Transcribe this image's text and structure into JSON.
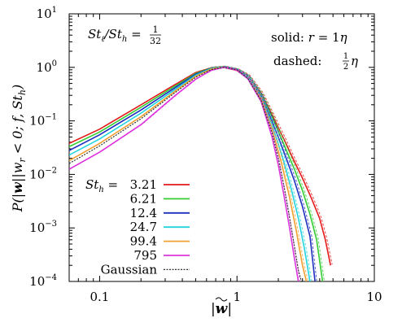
{
  "chart_data": {
    "type": "line",
    "title": "",
    "xlabel": "|w̃|",
    "ylabel": "P(|w̃| | w_r < 0; f, St_h)",
    "xscale": "log",
    "yscale": "log",
    "xlim": [
      0.06,
      10
    ],
    "ylim": [
      0.0001,
      10
    ],
    "xticks": [
      {
        "value": 0.1,
        "label": "0.1"
      },
      {
        "value": 1,
        "label": "1"
      },
      {
        "value": 10,
        "label": "10"
      }
    ],
    "yticks": [
      {
        "value": 0.0001,
        "base": "10",
        "exp": "−4"
      },
      {
        "value": 0.001,
        "base": "10",
        "exp": "−3"
      },
      {
        "value": 0.01,
        "base": "10",
        "exp": "−2"
      },
      {
        "value": 0.1,
        "base": "10",
        "exp": "−1"
      },
      {
        "value": 1,
        "base": "10",
        "exp": "0"
      },
      {
        "value": 10,
        "base": "10",
        "exp": "1"
      }
    ],
    "annotations": {
      "ratio_label": "St_ℓ/St_h = 1/32",
      "solid_label": "solid: r = 1η",
      "dashed_label": "dashed: ½η"
    },
    "legend": {
      "placement": "bottom-left",
      "header": "St_h = ",
      "entries": [
        "3.21",
        "6.21",
        "12.4",
        "24.7",
        "99.4",
        "795",
        "Gaussian"
      ]
    },
    "series": [
      {
        "name": "3.21",
        "color": "#e41a1c",
        "x": [
          0.06,
          0.1,
          0.2,
          0.35,
          0.5,
          0.65,
          0.8,
          1.0,
          1.2,
          1.5,
          1.8,
          2.2,
          2.6,
          3.0,
          3.5,
          4.0,
          4.4,
          4.8
        ],
        "y": [
          0.038,
          0.07,
          0.2,
          0.47,
          0.8,
          0.98,
          1.02,
          0.9,
          0.7,
          0.33,
          0.13,
          0.045,
          0.018,
          0.0085,
          0.0035,
          0.0015,
          0.0006,
          0.0002
        ]
      },
      {
        "name": "6.21",
        "color": "#33cc33",
        "x": [
          0.06,
          0.1,
          0.2,
          0.35,
          0.5,
          0.65,
          0.8,
          1.0,
          1.2,
          1.5,
          1.8,
          2.2,
          2.6,
          3.0,
          3.4,
          3.8,
          4.2
        ],
        "y": [
          0.033,
          0.062,
          0.18,
          0.44,
          0.77,
          0.97,
          1.02,
          0.9,
          0.68,
          0.31,
          0.12,
          0.036,
          0.013,
          0.005,
          0.0018,
          0.0006,
          0.0001
        ]
      },
      {
        "name": "12.4",
        "color": "#1f2fbf",
        "x": [
          0.06,
          0.1,
          0.2,
          0.35,
          0.5,
          0.65,
          0.8,
          1.0,
          1.2,
          1.5,
          1.8,
          2.2,
          2.6,
          3.0,
          3.4,
          3.7
        ],
        "y": [
          0.028,
          0.055,
          0.16,
          0.41,
          0.74,
          0.96,
          1.01,
          0.89,
          0.66,
          0.29,
          0.1,
          0.026,
          0.008,
          0.0025,
          0.0007,
          0.0001
        ]
      },
      {
        "name": "24.7",
        "color": "#22d4dd",
        "x": [
          0.06,
          0.1,
          0.2,
          0.35,
          0.5,
          0.65,
          0.8,
          1.0,
          1.2,
          1.5,
          1.8,
          2.2,
          2.5,
          2.8,
          3.1,
          3.4
        ],
        "y": [
          0.023,
          0.046,
          0.14,
          0.38,
          0.71,
          0.95,
          1.01,
          0.88,
          0.64,
          0.27,
          0.085,
          0.017,
          0.005,
          0.0015,
          0.0004,
          0.0001
        ]
      },
      {
        "name": "99.4",
        "color": "#f0a030",
        "x": [
          0.06,
          0.1,
          0.2,
          0.35,
          0.5,
          0.65,
          0.8,
          1.0,
          1.2,
          1.5,
          1.8,
          2.1,
          2.4,
          2.7,
          3.0,
          3.2
        ],
        "y": [
          0.018,
          0.038,
          0.12,
          0.35,
          0.68,
          0.93,
          1.0,
          0.87,
          0.62,
          0.25,
          0.07,
          0.017,
          0.004,
          0.0009,
          0.0002,
          0.0001
        ]
      },
      {
        "name": "795",
        "color": "#dd33dd",
        "x": [
          0.06,
          0.1,
          0.2,
          0.35,
          0.5,
          0.65,
          0.8,
          1.0,
          1.2,
          1.5,
          1.8,
          2.0,
          2.2,
          2.4,
          2.6,
          2.8
        ],
        "y": [
          0.0125,
          0.026,
          0.085,
          0.29,
          0.6,
          0.88,
          1.0,
          0.88,
          0.61,
          0.23,
          0.05,
          0.015,
          0.004,
          0.0011,
          0.0003,
          0.0001
        ]
      },
      {
        "name": "Gaussian",
        "color": "#333333",
        "x": [
          0.06,
          0.1,
          0.2,
          0.35,
          0.5,
          0.65,
          0.8,
          1.0,
          1.2,
          1.5,
          1.8,
          2.0,
          2.2,
          2.4,
          2.6,
          2.8,
          2.95
        ],
        "y": [
          0.016,
          0.034,
          0.11,
          0.33,
          0.65,
          0.91,
          1.0,
          0.9,
          0.62,
          0.24,
          0.06,
          0.02,
          0.006,
          0.0017,
          0.0005,
          0.00016,
          0.0001
        ]
      }
    ]
  }
}
